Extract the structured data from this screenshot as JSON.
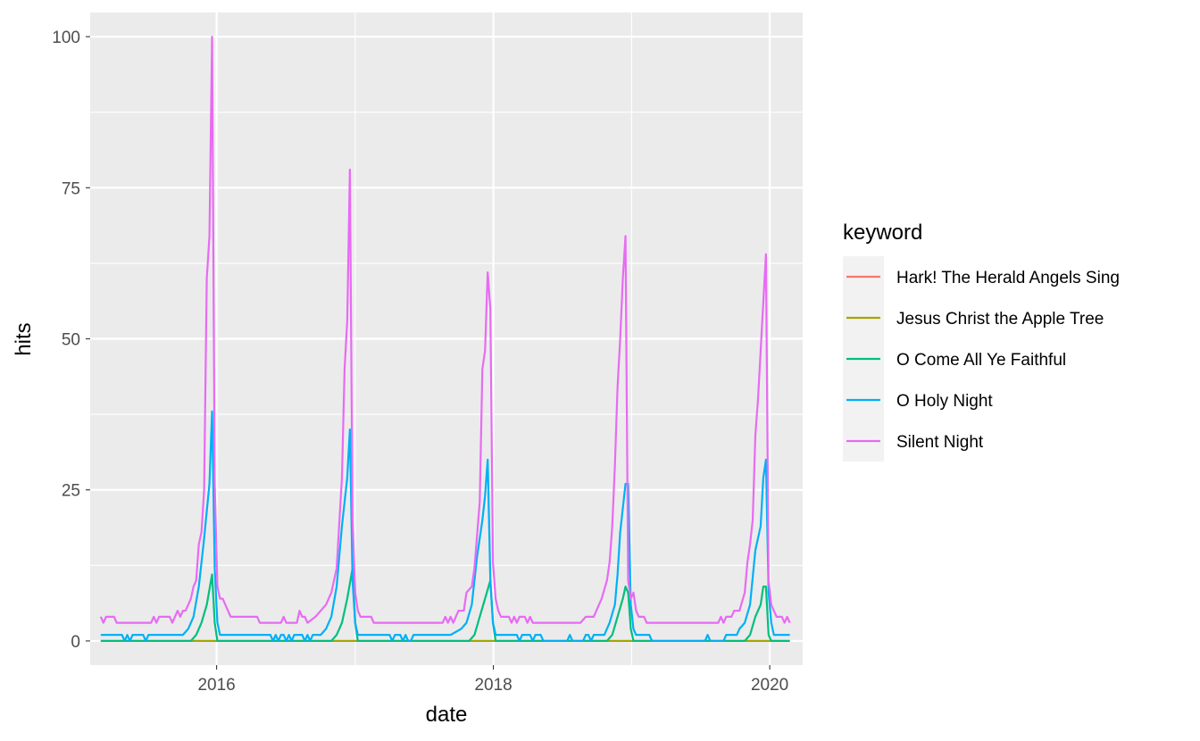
{
  "chart_data": {
    "type": "line",
    "title": "",
    "xlabel": "date",
    "ylabel": "hits",
    "xlim": [
      "2015-02-01",
      "2020-03-28"
    ],
    "ylim": [
      -4,
      104
    ],
    "x_ticks": [
      "2016",
      "2018",
      "2020"
    ],
    "y_ticks": [
      "0",
      "25",
      "50",
      "75",
      "100"
    ],
    "grid": true,
    "legend": {
      "title": "keyword",
      "position": "right"
    },
    "series": [
      {
        "name": "Hark! The Herald Angels Sing",
        "color": "#F8766D",
        "points": [
          [
            "2015-03-01",
            0
          ],
          [
            "2020-02-23",
            0
          ]
        ]
      },
      {
        "name": "Jesus Christ the Apple Tree",
        "color": "#A3A500",
        "points": [
          [
            "2015-03-01",
            0
          ],
          [
            "2020-02-23",
            0
          ]
        ]
      },
      {
        "name": "O Come All Ye Faithful",
        "color": "#00BF7D",
        "points": [
          [
            "2015-03-01",
            0
          ],
          [
            "2015-10-25",
            0
          ],
          [
            "2015-11-08",
            1
          ],
          [
            "2015-11-22",
            3
          ],
          [
            "2015-12-06",
            6
          ],
          [
            "2015-12-20",
            11
          ],
          [
            "2015-12-27",
            3
          ],
          [
            "2016-01-03",
            0
          ],
          [
            "2016-10-30",
            0
          ],
          [
            "2016-11-13",
            1
          ],
          [
            "2016-11-27",
            3
          ],
          [
            "2016-12-11",
            7
          ],
          [
            "2016-12-25",
            12
          ],
          [
            "2017-01-01",
            3
          ],
          [
            "2017-01-08",
            0
          ],
          [
            "2017-10-29",
            0
          ],
          [
            "2017-11-12",
            1
          ],
          [
            "2017-11-26",
            4
          ],
          [
            "2017-12-10",
            7
          ],
          [
            "2017-12-24",
            10
          ],
          [
            "2017-12-31",
            3
          ],
          [
            "2018-01-07",
            0
          ],
          [
            "2018-10-28",
            0
          ],
          [
            "2018-11-11",
            1
          ],
          [
            "2018-11-25",
            4
          ],
          [
            "2018-12-09",
            7
          ],
          [
            "2018-12-16",
            9
          ],
          [
            "2018-12-23",
            8
          ],
          [
            "2018-12-30",
            2
          ],
          [
            "2019-01-06",
            0
          ],
          [
            "2019-10-27",
            0
          ],
          [
            "2019-11-10",
            1
          ],
          [
            "2019-11-24",
            4
          ],
          [
            "2019-12-08",
            6
          ],
          [
            "2019-12-15",
            9
          ],
          [
            "2019-12-22",
            9
          ],
          [
            "2019-12-29",
            1
          ],
          [
            "2020-01-05",
            0
          ],
          [
            "2020-02-23",
            0
          ]
        ]
      },
      {
        "name": "O Holy Night",
        "color": "#00B0F6",
        "points": [
          [
            "2015-03-01",
            1
          ],
          [
            "2015-04-26",
            1
          ],
          [
            "2015-05-03",
            0
          ],
          [
            "2015-05-10",
            1
          ],
          [
            "2015-05-17",
            0
          ],
          [
            "2015-05-24",
            1
          ],
          [
            "2015-06-21",
            1
          ],
          [
            "2015-06-28",
            0
          ],
          [
            "2015-07-05",
            1
          ],
          [
            "2015-10-04",
            1
          ],
          [
            "2015-10-18",
            2
          ],
          [
            "2015-11-01",
            4
          ],
          [
            "2015-11-15",
            9
          ],
          [
            "2015-11-29",
            17
          ],
          [
            "2015-12-13",
            26
          ],
          [
            "2015-12-20",
            38
          ],
          [
            "2015-12-27",
            12
          ],
          [
            "2016-01-03",
            3
          ],
          [
            "2016-01-10",
            1
          ],
          [
            "2016-05-22",
            1
          ],
          [
            "2016-05-29",
            0
          ],
          [
            "2016-06-05",
            1
          ],
          [
            "2016-06-12",
            0
          ],
          [
            "2016-06-19",
            1
          ],
          [
            "2016-06-26",
            1
          ],
          [
            "2016-07-03",
            0
          ],
          [
            "2016-07-10",
            1
          ],
          [
            "2016-07-17",
            0
          ],
          [
            "2016-07-24",
            1
          ],
          [
            "2016-08-14",
            1
          ],
          [
            "2016-08-21",
            0
          ],
          [
            "2016-08-28",
            1
          ],
          [
            "2016-09-04",
            0
          ],
          [
            "2016-09-11",
            1
          ],
          [
            "2016-10-02",
            1
          ],
          [
            "2016-10-16",
            2
          ],
          [
            "2016-10-30",
            4
          ],
          [
            "2016-11-13",
            9
          ],
          [
            "2016-11-27",
            19
          ],
          [
            "2016-12-11",
            27
          ],
          [
            "2016-12-18",
            35
          ],
          [
            "2016-12-25",
            10
          ],
          [
            "2017-01-01",
            3
          ],
          [
            "2017-01-08",
            1
          ],
          [
            "2017-04-02",
            1
          ],
          [
            "2017-04-09",
            0
          ],
          [
            "2017-04-16",
            1
          ],
          [
            "2017-04-30",
            1
          ],
          [
            "2017-05-07",
            0
          ],
          [
            "2017-05-14",
            1
          ],
          [
            "2017-05-21",
            0
          ],
          [
            "2017-05-28",
            0
          ],
          [
            "2017-06-04",
            1
          ],
          [
            "2017-09-10",
            1
          ],
          [
            "2017-10-08",
            2
          ],
          [
            "2017-10-22",
            3
          ],
          [
            "2017-11-05",
            6
          ],
          [
            "2017-11-19",
            14
          ],
          [
            "2017-12-03",
            20
          ],
          [
            "2017-12-10",
            24
          ],
          [
            "2017-12-17",
            30
          ],
          [
            "2017-12-24",
            10
          ],
          [
            "2017-12-31",
            3
          ],
          [
            "2018-01-07",
            1
          ],
          [
            "2018-03-04",
            1
          ],
          [
            "2018-03-11",
            0
          ],
          [
            "2018-03-18",
            1
          ],
          [
            "2018-04-08",
            1
          ],
          [
            "2018-04-15",
            0
          ],
          [
            "2018-04-22",
            1
          ],
          [
            "2018-05-06",
            1
          ],
          [
            "2018-05-13",
            0
          ],
          [
            "2018-07-15",
            0
          ],
          [
            "2018-07-22",
            1
          ],
          [
            "2018-07-29",
            0
          ],
          [
            "2018-08-26",
            0
          ],
          [
            "2018-09-02",
            1
          ],
          [
            "2018-09-09",
            1
          ],
          [
            "2018-09-16",
            0
          ],
          [
            "2018-09-23",
            1
          ],
          [
            "2018-10-21",
            1
          ],
          [
            "2018-11-04",
            3
          ],
          [
            "2018-11-18",
            6
          ],
          [
            "2018-11-25",
            11
          ],
          [
            "2018-12-02",
            18
          ],
          [
            "2018-12-09",
            22
          ],
          [
            "2018-12-16",
            26
          ],
          [
            "2018-12-23",
            26
          ],
          [
            "2018-12-30",
            6
          ],
          [
            "2019-01-06",
            2
          ],
          [
            "2019-01-13",
            1
          ],
          [
            "2019-02-17",
            1
          ],
          [
            "2019-02-24",
            0
          ],
          [
            "2019-07-14",
            0
          ],
          [
            "2019-07-21",
            1
          ],
          [
            "2019-07-28",
            0
          ],
          [
            "2019-09-01",
            0
          ],
          [
            "2019-09-08",
            1
          ],
          [
            "2019-10-06",
            1
          ],
          [
            "2019-10-13",
            2
          ],
          [
            "2019-10-27",
            3
          ],
          [
            "2019-11-10",
            6
          ],
          [
            "2019-11-24",
            15
          ],
          [
            "2019-12-08",
            19
          ],
          [
            "2019-12-15",
            27
          ],
          [
            "2019-12-22",
            30
          ],
          [
            "2019-12-29",
            8
          ],
          [
            "2020-01-05",
            3
          ],
          [
            "2020-01-12",
            1
          ],
          [
            "2020-02-23",
            1
          ]
        ]
      },
      {
        "name": "Silent Night",
        "color": "#E76BF3",
        "points": [
          [
            "2015-03-01",
            4
          ],
          [
            "2015-03-08",
            3
          ],
          [
            "2015-03-15",
            4
          ],
          [
            "2015-04-05",
            4
          ],
          [
            "2015-04-12",
            3
          ],
          [
            "2015-07-12",
            3
          ],
          [
            "2015-07-19",
            4
          ],
          [
            "2015-07-26",
            3
          ],
          [
            "2015-08-02",
            4
          ],
          [
            "2015-08-30",
            4
          ],
          [
            "2015-09-06",
            3
          ],
          [
            "2015-09-20",
            5
          ],
          [
            "2015-09-27",
            4
          ],
          [
            "2015-10-04",
            5
          ],
          [
            "2015-10-11",
            5
          ],
          [
            "2015-10-25",
            7
          ],
          [
            "2015-11-01",
            9
          ],
          [
            "2015-11-08",
            10
          ],
          [
            "2015-11-15",
            16
          ],
          [
            "2015-11-22",
            18
          ],
          [
            "2015-11-29",
            25
          ],
          [
            "2015-12-06",
            60
          ],
          [
            "2015-12-13",
            67
          ],
          [
            "2015-12-20",
            100
          ],
          [
            "2015-12-27",
            26
          ],
          [
            "2016-01-03",
            9
          ],
          [
            "2016-01-10",
            7
          ],
          [
            "2016-01-17",
            7
          ],
          [
            "2016-01-31",
            5
          ],
          [
            "2016-02-07",
            4
          ],
          [
            "2016-04-17",
            4
          ],
          [
            "2016-04-24",
            3
          ],
          [
            "2016-06-19",
            3
          ],
          [
            "2016-06-26",
            4
          ],
          [
            "2016-07-03",
            3
          ],
          [
            "2016-07-31",
            3
          ],
          [
            "2016-08-07",
            5
          ],
          [
            "2016-08-14",
            4
          ],
          [
            "2016-08-21",
            4
          ],
          [
            "2016-08-28",
            3
          ],
          [
            "2016-09-18",
            4
          ],
          [
            "2016-10-02",
            5
          ],
          [
            "2016-10-16",
            6
          ],
          [
            "2016-10-30",
            8
          ],
          [
            "2016-11-13",
            12
          ],
          [
            "2016-11-27",
            27
          ],
          [
            "2016-12-04",
            45
          ],
          [
            "2016-12-11",
            53
          ],
          [
            "2016-12-18",
            78
          ],
          [
            "2016-12-25",
            20
          ],
          [
            "2017-01-01",
            8
          ],
          [
            "2017-01-08",
            5
          ],
          [
            "2017-01-15",
            4
          ],
          [
            "2017-02-12",
            4
          ],
          [
            "2017-02-19",
            3
          ],
          [
            "2017-08-20",
            3
          ],
          [
            "2017-08-27",
            4
          ],
          [
            "2017-09-03",
            3
          ],
          [
            "2017-09-10",
            4
          ],
          [
            "2017-09-17",
            3
          ],
          [
            "2017-09-24",
            4
          ],
          [
            "2017-10-01",
            5
          ],
          [
            "2017-10-15",
            5
          ],
          [
            "2017-10-22",
            8
          ],
          [
            "2017-11-05",
            9
          ],
          [
            "2017-11-12",
            12
          ],
          [
            "2017-11-26",
            23
          ],
          [
            "2017-12-03",
            45
          ],
          [
            "2017-12-10",
            48
          ],
          [
            "2017-12-17",
            61
          ],
          [
            "2017-12-24",
            55
          ],
          [
            "2017-12-31",
            13
          ],
          [
            "2018-01-07",
            7
          ],
          [
            "2018-01-14",
            5
          ],
          [
            "2018-01-21",
            4
          ],
          [
            "2018-02-11",
            4
          ],
          [
            "2018-02-18",
            3
          ],
          [
            "2018-02-25",
            4
          ],
          [
            "2018-03-04",
            3
          ],
          [
            "2018-03-11",
            4
          ],
          [
            "2018-03-25",
            4
          ],
          [
            "2018-04-01",
            3
          ],
          [
            "2018-04-08",
            4
          ],
          [
            "2018-04-15",
            3
          ],
          [
            "2018-08-19",
            3
          ],
          [
            "2018-09-02",
            4
          ],
          [
            "2018-09-23",
            4
          ],
          [
            "2018-09-30",
            5
          ],
          [
            "2018-10-14",
            7
          ],
          [
            "2018-10-28",
            10
          ],
          [
            "2018-11-04",
            13
          ],
          [
            "2018-11-11",
            19
          ],
          [
            "2018-11-18",
            29
          ],
          [
            "2018-11-25",
            42
          ],
          [
            "2018-12-02",
            50
          ],
          [
            "2018-12-09",
            60
          ],
          [
            "2018-12-16",
            67
          ],
          [
            "2018-12-23",
            10
          ],
          [
            "2018-12-30",
            7
          ],
          [
            "2019-01-06",
            8
          ],
          [
            "2019-01-13",
            5
          ],
          [
            "2019-01-20",
            4
          ],
          [
            "2019-02-03",
            4
          ],
          [
            "2019-02-10",
            3
          ],
          [
            "2019-08-18",
            3
          ],
          [
            "2019-08-25",
            4
          ],
          [
            "2019-09-01",
            3
          ],
          [
            "2019-09-08",
            4
          ],
          [
            "2019-09-22",
            4
          ],
          [
            "2019-09-29",
            5
          ],
          [
            "2019-10-13",
            5
          ],
          [
            "2019-10-27",
            8
          ],
          [
            "2019-11-03",
            13
          ],
          [
            "2019-11-10",
            16
          ],
          [
            "2019-11-17",
            20
          ],
          [
            "2019-11-24",
            34
          ],
          [
            "2019-12-01",
            40
          ],
          [
            "2019-12-08",
            48
          ],
          [
            "2019-12-22",
            64
          ],
          [
            "2019-12-29",
            10
          ],
          [
            "2020-01-05",
            6
          ],
          [
            "2020-01-19",
            4
          ],
          [
            "2020-02-02",
            4
          ],
          [
            "2020-02-09",
            3
          ],
          [
            "2020-02-16",
            4
          ],
          [
            "2020-02-23",
            3
          ]
        ]
      }
    ]
  }
}
